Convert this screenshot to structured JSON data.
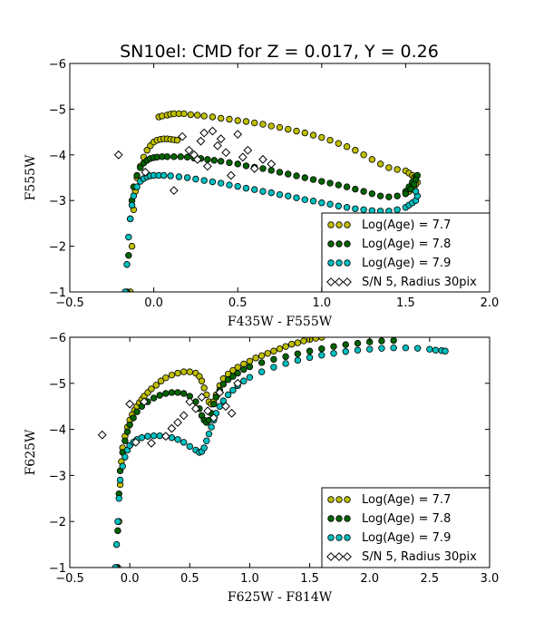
{
  "figure_title": "SN10el: CMD for Z = 0.017, Y = 0.26",
  "colors": {
    "age77": "#bfbf00",
    "age78": "#006400",
    "age79": "#00bfbf",
    "observed_face": "#ffffff",
    "edge": "#000000"
  },
  "chart_data": [
    {
      "type": "scatter",
      "title": "SN10el: CMD for Z = 0.017, Y = 0.26",
      "xlabel": "F435W - F555W",
      "ylabel": "F555W",
      "xlim": [
        -0.5,
        2.0
      ],
      "ylim": [
        -1,
        -6
      ],
      "y_inverted": true,
      "xticks": [
        -0.5,
        0.0,
        0.5,
        1.0,
        1.5,
        2.0
      ],
      "xtick_labels": [
        "−0.5",
        "0.0",
        "0.5",
        "1.0",
        "1.5",
        "2.0"
      ],
      "yticks": [
        -1,
        -2,
        -3,
        -4,
        -5,
        -6
      ],
      "ytick_labels": [
        "−1",
        "−2",
        "−3",
        "−4",
        "−5",
        "−6"
      ],
      "legend_position": "lower-right",
      "series": [
        {
          "name": "Log(Age) = 7.7",
          "marker": "circle",
          "color": "#bfbf00",
          "x": [
            -0.14,
            -0.13,
            -0.12,
            -0.11,
            -0.1,
            -0.08,
            -0.06,
            -0.04,
            -0.02,
            0.0,
            0.02,
            0.04,
            0.06,
            0.08,
            0.1,
            0.12,
            0.14,
            0.03,
            0.05,
            0.08,
            0.1,
            0.12,
            0.15,
            0.18,
            0.22,
            0.26,
            0.3,
            0.35,
            0.4,
            0.45,
            0.5,
            0.55,
            0.6,
            0.65,
            0.7,
            0.75,
            0.8,
            0.85,
            0.9,
            0.95,
            1.0,
            1.05,
            1.1,
            1.15,
            1.2,
            1.25,
            1.3,
            1.35,
            1.4,
            1.45,
            1.5,
            1.52,
            1.54,
            1.55,
            1.56,
            1.57,
            1.56,
            1.55,
            1.54,
            1.52,
            1.5
          ],
          "y": [
            -1.0,
            -2.0,
            -2.8,
            -3.2,
            -3.5,
            -3.75,
            -3.95,
            -4.1,
            -4.2,
            -4.28,
            -4.32,
            -4.34,
            -4.35,
            -4.35,
            -4.34,
            -4.33,
            -4.32,
            -4.83,
            -4.85,
            -4.87,
            -4.89,
            -4.9,
            -4.9,
            -4.9,
            -4.88,
            -4.87,
            -4.85,
            -4.83,
            -4.8,
            -4.78,
            -4.75,
            -4.73,
            -4.7,
            -4.67,
            -4.63,
            -4.6,
            -4.56,
            -4.52,
            -4.48,
            -4.43,
            -4.38,
            -4.32,
            -4.25,
            -4.18,
            -4.1,
            -4.0,
            -3.9,
            -3.8,
            -3.72,
            -3.68,
            -3.65,
            -3.6,
            -3.55,
            -3.5,
            -3.45,
            -3.4,
            -3.35,
            -3.3,
            -3.25,
            -3.2,
            -3.15
          ]
        },
        {
          "name": "Log(Age) = 7.8",
          "marker": "circle",
          "color": "#006400",
          "x": [
            -0.16,
            -0.15,
            -0.14,
            -0.13,
            -0.12,
            -0.1,
            -0.08,
            -0.06,
            -0.04,
            -0.02,
            0.0,
            0.02,
            0.05,
            0.08,
            0.12,
            0.16,
            0.2,
            0.24,
            0.28,
            0.32,
            0.36,
            0.4,
            0.45,
            0.5,
            0.55,
            0.6,
            0.65,
            0.7,
            0.75,
            0.8,
            0.85,
            0.9,
            0.95,
            1.0,
            1.05,
            1.1,
            1.15,
            1.2,
            1.25,
            1.3,
            1.35,
            1.4,
            1.45,
            1.5,
            1.52,
            1.54,
            1.56,
            1.57,
            1.56,
            1.55,
            1.53,
            1.5
          ],
          "y": [
            -1.0,
            -1.8,
            -2.6,
            -3.0,
            -3.3,
            -3.55,
            -3.72,
            -3.82,
            -3.88,
            -3.92,
            -3.94,
            -3.95,
            -3.96,
            -3.96,
            -3.96,
            -3.96,
            -3.95,
            -3.93,
            -3.92,
            -3.9,
            -3.88,
            -3.86,
            -3.83,
            -3.8,
            -3.76,
            -3.73,
            -3.7,
            -3.66,
            -3.62,
            -3.58,
            -3.54,
            -3.5,
            -3.46,
            -3.42,
            -3.38,
            -3.34,
            -3.3,
            -3.25,
            -3.2,
            -3.15,
            -3.1,
            -3.08,
            -3.1,
            -3.2,
            -3.3,
            -3.4,
            -3.5,
            -3.55,
            -3.45,
            -3.35,
            -3.25,
            -3.15
          ]
        },
        {
          "name": "Log(Age) = 7.9",
          "marker": "circle",
          "color": "#00bfbf",
          "x": [
            -0.17,
            -0.16,
            -0.15,
            -0.14,
            -0.13,
            -0.12,
            -0.1,
            -0.08,
            -0.06,
            -0.04,
            -0.02,
            0.0,
            0.03,
            0.06,
            0.1,
            0.15,
            0.2,
            0.25,
            0.3,
            0.35,
            0.4,
            0.45,
            0.5,
            0.55,
            0.6,
            0.65,
            0.7,
            0.75,
            0.8,
            0.85,
            0.9,
            0.95,
            1.0,
            1.05,
            1.1,
            1.15,
            1.2,
            1.25,
            1.3,
            1.35,
            1.4,
            1.45,
            1.5,
            1.52,
            1.54,
            1.56,
            1.57,
            1.56
          ],
          "y": [
            -1.0,
            -1.6,
            -2.2,
            -2.6,
            -2.9,
            -3.1,
            -3.3,
            -3.42,
            -3.48,
            -3.52,
            -3.54,
            -3.55,
            -3.55,
            -3.55,
            -3.54,
            -3.52,
            -3.5,
            -3.47,
            -3.44,
            -3.41,
            -3.38,
            -3.34,
            -3.31,
            -3.27,
            -3.24,
            -3.2,
            -3.17,
            -3.13,
            -3.1,
            -3.06,
            -3.02,
            -2.99,
            -2.95,
            -2.92,
            -2.88,
            -2.85,
            -2.82,
            -2.8,
            -2.78,
            -2.77,
            -2.77,
            -2.8,
            -2.85,
            -2.9,
            -2.95,
            -3.0,
            -3.1,
            -3.2
          ]
        },
        {
          "name": "S/N 5, Radius 30pix",
          "marker": "diamond",
          "color": "#ffffff",
          "x": [
            -0.21,
            -0.05,
            0.12,
            0.17,
            0.21,
            0.24,
            0.26,
            0.28,
            0.3,
            0.32,
            0.35,
            0.38,
            0.4,
            0.43,
            0.46,
            0.5,
            0.53,
            0.56,
            0.6,
            0.65,
            0.7
          ],
          "y": [
            -4.0,
            -3.62,
            -3.22,
            -4.4,
            -4.1,
            -4.0,
            -3.9,
            -4.3,
            -4.48,
            -3.75,
            -4.52,
            -4.2,
            -4.35,
            -4.05,
            -3.55,
            -4.45,
            -3.95,
            -4.1,
            -3.7,
            -3.9,
            -3.8
          ]
        }
      ]
    },
    {
      "type": "scatter",
      "xlabel": "F625W - F814W",
      "ylabel": "F625W",
      "xlim": [
        -0.5,
        3.0
      ],
      "ylim": [
        -1,
        -6
      ],
      "y_inverted": true,
      "xticks": [
        -0.5,
        0.0,
        0.5,
        1.0,
        1.5,
        2.0,
        2.5,
        3.0
      ],
      "xtick_labels": [
        "−0.5",
        "0.0",
        "0.5",
        "1.0",
        "1.5",
        "2.0",
        "2.5",
        "3.0"
      ],
      "yticks": [
        -1,
        -2,
        -3,
        -4,
        -5,
        -6
      ],
      "ytick_labels": [
        "−1",
        "−2",
        "−3",
        "−4",
        "−5",
        "−6"
      ],
      "legend_position": "lower-right",
      "series": [
        {
          "name": "Log(Age) = 7.7",
          "marker": "circle",
          "color": "#bfbf00",
          "x": [
            -0.1,
            -0.09,
            -0.08,
            -0.07,
            -0.06,
            -0.04,
            -0.02,
            0.0,
            0.02,
            0.04,
            0.06,
            0.08,
            0.1,
            0.12,
            0.15,
            0.18,
            0.22,
            0.26,
            0.3,
            0.35,
            0.4,
            0.45,
            0.5,
            0.55,
            0.58,
            0.6,
            0.62,
            0.64,
            0.66,
            0.68,
            0.7,
            0.72,
            0.75,
            0.78,
            0.82,
            0.86,
            0.9,
            0.95,
            1.0,
            1.05,
            1.1,
            1.15,
            1.2,
            1.25,
            1.3,
            1.35,
            1.4,
            1.45,
            1.5,
            1.55,
            1.6
          ],
          "y": [
            -1.0,
            -2.0,
            -2.8,
            -3.3,
            -3.6,
            -3.85,
            -4.05,
            -4.2,
            -4.32,
            -4.42,
            -4.5,
            -4.58,
            -4.65,
            -4.72,
            -4.8,
            -4.88,
            -4.96,
            -5.05,
            -5.12,
            -5.18,
            -5.22,
            -5.25,
            -5.25,
            -5.22,
            -5.15,
            -5.05,
            -4.9,
            -4.75,
            -4.6,
            -4.55,
            -4.6,
            -4.75,
            -4.95,
            -5.1,
            -5.2,
            -5.28,
            -5.35,
            -5.42,
            -5.48,
            -5.55,
            -5.6,
            -5.65,
            -5.7,
            -5.75,
            -5.8,
            -5.85,
            -5.88,
            -5.92,
            -5.95,
            -5.98,
            -6.0
          ]
        },
        {
          "name": "Log(Age) = 7.8",
          "marker": "circle",
          "color": "#006400",
          "x": [
            -0.11,
            -0.1,
            -0.09,
            -0.08,
            -0.06,
            -0.04,
            -0.02,
            0.0,
            0.03,
            0.06,
            0.1,
            0.15,
            0.2,
            0.25,
            0.3,
            0.35,
            0.4,
            0.45,
            0.5,
            0.55,
            0.58,
            0.6,
            0.62,
            0.64,
            0.66,
            0.68,
            0.7,
            0.72,
            0.75,
            0.78,
            0.82,
            0.86,
            0.9,
            0.95,
            1.0,
            1.1,
            1.2,
            1.3,
            1.4,
            1.5,
            1.6,
            1.7,
            1.8,
            1.9,
            2.0,
            2.1,
            2.2
          ],
          "y": [
            -1.0,
            -1.8,
            -2.6,
            -3.1,
            -3.5,
            -3.75,
            -3.95,
            -4.1,
            -4.25,
            -4.38,
            -4.5,
            -4.6,
            -4.68,
            -4.74,
            -4.78,
            -4.8,
            -4.8,
            -4.78,
            -4.72,
            -4.6,
            -4.45,
            -4.3,
            -4.2,
            -4.15,
            -4.2,
            -4.35,
            -4.55,
            -4.7,
            -4.85,
            -4.98,
            -5.08,
            -5.15,
            -5.22,
            -5.3,
            -5.36,
            -5.45,
            -5.52,
            -5.58,
            -5.64,
            -5.7,
            -5.75,
            -5.8,
            -5.84,
            -5.87,
            -5.9,
            -5.92,
            -5.93
          ]
        },
        {
          "name": "Log(Age) = 7.9",
          "marker": "circle",
          "color": "#00bfbf",
          "x": [
            -0.12,
            -0.11,
            -0.1,
            -0.09,
            -0.08,
            -0.06,
            -0.04,
            -0.02,
            0.0,
            0.03,
            0.06,
            0.1,
            0.15,
            0.2,
            0.25,
            0.3,
            0.35,
            0.4,
            0.45,
            0.5,
            0.55,
            0.58,
            0.6,
            0.62,
            0.64,
            0.66,
            0.68,
            0.7,
            0.72,
            0.75,
            0.78,
            0.82,
            0.86,
            0.9,
            0.95,
            1.0,
            1.1,
            1.2,
            1.3,
            1.4,
            1.5,
            1.6,
            1.7,
            1.8,
            1.9,
            2.0,
            2.1,
            2.2,
            2.3,
            2.4,
            2.5,
            2.55,
            2.6,
            2.63
          ],
          "y": [
            -1.0,
            -1.5,
            -2.0,
            -2.5,
            -2.9,
            -3.2,
            -3.4,
            -3.55,
            -3.65,
            -3.72,
            -3.78,
            -3.82,
            -3.85,
            -3.86,
            -3.86,
            -3.85,
            -3.82,
            -3.78,
            -3.72,
            -3.63,
            -3.55,
            -3.5,
            -3.52,
            -3.6,
            -3.75,
            -3.9,
            -4.05,
            -4.2,
            -4.35,
            -4.5,
            -4.62,
            -4.75,
            -4.85,
            -4.95,
            -5.05,
            -5.13,
            -5.25,
            -5.35,
            -5.43,
            -5.5,
            -5.56,
            -5.61,
            -5.65,
            -5.69,
            -5.72,
            -5.74,
            -5.76,
            -5.77,
            -5.77,
            -5.76,
            -5.74,
            -5.72,
            -5.71,
            -5.7
          ]
        },
        {
          "name": "S/N 5, Radius 30pix",
          "marker": "diamond",
          "color": "#ffffff",
          "x": [
            -0.23,
            0.0,
            0.05,
            0.12,
            0.18,
            0.3,
            0.35,
            0.4,
            0.45,
            0.5,
            0.55,
            0.6,
            0.65,
            0.7,
            0.75,
            0.8,
            0.85,
            0.9
          ],
          "y": [
            -3.88,
            -4.55,
            -3.72,
            -4.6,
            -3.7,
            -3.85,
            -4.02,
            -4.15,
            -4.3,
            -4.6,
            -4.45,
            -4.7,
            -4.4,
            -4.25,
            -4.8,
            -4.5,
            -4.35,
            -5.0
          ]
        }
      ]
    }
  ]
}
